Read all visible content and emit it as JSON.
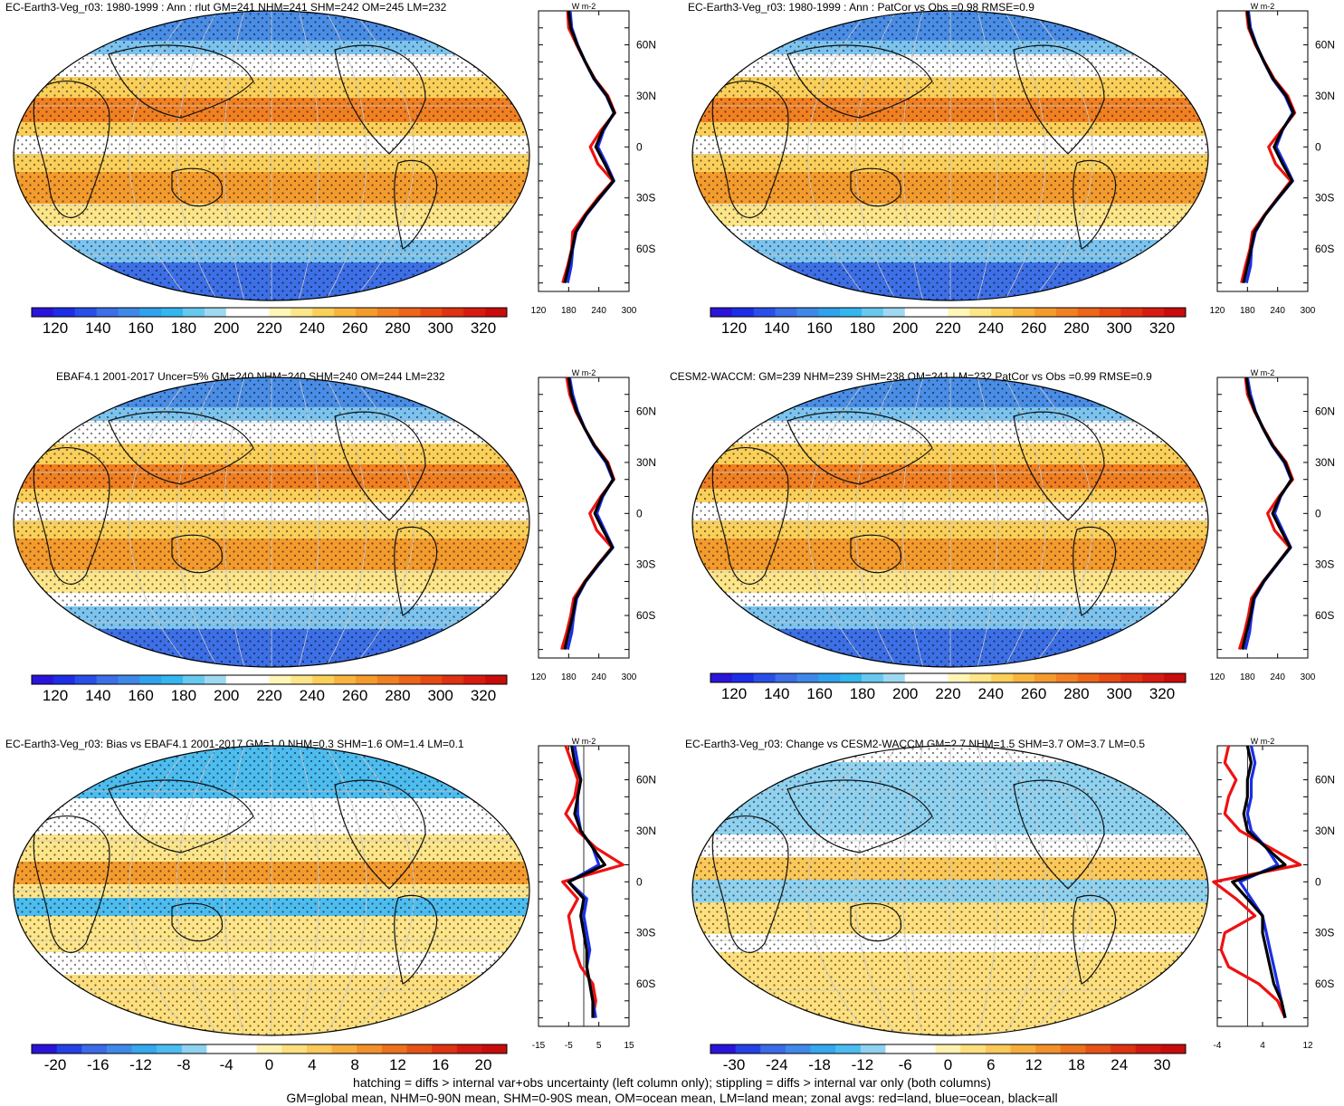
{
  "footer": {
    "line1": "hatching = diffs > internal var+obs uncertainty (left column only); stippling = diffs > internal var only (both columns)",
    "line2": "GM=global mean, NHM=0-90N mean, SHM=0-90S mean, OM=ocean mean, LM=land mean; zonal avgs: red=land, blue=ocean, black=all"
  },
  "colors": {
    "land": "#ee1111",
    "ocean": "#1a2ee6",
    "all": "#000000"
  },
  "chart_data": [
    {
      "type": "heatmap",
      "title": "EC-Earth3-Veg_r03: 1980-1999 : Ann : rlut GM=241 NHM=241 SHM=242 OM=245 LM=232",
      "colorbar": {
        "min": 110,
        "max": 330,
        "ticks": [
          "120",
          "140",
          "160",
          "180",
          "200",
          "220",
          "240",
          "260",
          "280",
          "300",
          "320"
        ]
      },
      "zonal": {
        "unit": "W m-2",
        "lat_ticks": [
          "60N",
          "30N",
          "0",
          "30S",
          "60S"
        ],
        "xticks": [
          "120",
          "180",
          "240",
          "300"
        ],
        "xlim": [
          120,
          300
        ],
        "lat": [
          80,
          70,
          60,
          50,
          40,
          30,
          20,
          10,
          0,
          -10,
          -20,
          -30,
          -40,
          -50,
          -60,
          -70,
          -80
        ],
        "land": [
          178,
          180,
          196,
          213,
          232,
          258,
          272,
          245,
          223,
          238,
          268,
          238,
          212,
          188,
          186,
          178,
          168
        ],
        "ocean": [
          183,
          186,
          198,
          213,
          230,
          255,
          270,
          250,
          238,
          255,
          270,
          242,
          215,
          195,
          188,
          185,
          178
        ],
        "all": [
          180,
          184,
          197,
          213,
          231,
          256,
          271,
          248,
          234,
          252,
          269,
          241,
          214,
          194,
          187,
          180,
          172
        ]
      }
    },
    {
      "type": "heatmap",
      "title": "EC-Earth3-Veg_r03: 1980-1999 : Ann : PatCor vs Obs =0.98 RMSE=0.9",
      "colorbar": {
        "min": 110,
        "max": 330,
        "ticks": [
          "120",
          "140",
          "160",
          "180",
          "200",
          "220",
          "240",
          "260",
          "280",
          "300",
          "320"
        ]
      },
      "zonal": {
        "unit": "W m-2",
        "lat_ticks": [
          "60N",
          "30N",
          "0",
          "30S",
          "60S"
        ],
        "xticks": [
          "120",
          "180",
          "240",
          "300"
        ],
        "xlim": [
          120,
          300
        ],
        "lat": [
          80,
          70,
          60,
          50,
          40,
          30,
          20,
          10,
          0,
          -10,
          -20,
          -30,
          -40,
          -50,
          -60,
          -70,
          -80
        ],
        "land": [
          178,
          182,
          196,
          214,
          233,
          260,
          274,
          248,
          222,
          236,
          266,
          240,
          214,
          190,
          185,
          176,
          168
        ],
        "ocean": [
          182,
          186,
          198,
          213,
          230,
          255,
          270,
          250,
          237,
          254,
          270,
          242,
          215,
          196,
          188,
          186,
          178
        ],
        "all": [
          180,
          184,
          197,
          213,
          231,
          257,
          272,
          249,
          233,
          250,
          269,
          241,
          215,
          194,
          187,
          180,
          172
        ]
      }
    },
    {
      "type": "heatmap",
      "title": "EBAF4.1 2001-2017 Uncer=5% GM=240 NHM=240 SHM=240 OM=244 LM=232",
      "colorbar": {
        "min": 110,
        "max": 330,
        "ticks": [
          "120",
          "140",
          "160",
          "180",
          "200",
          "220",
          "240",
          "260",
          "280",
          "300",
          "320"
        ]
      },
      "zonal": {
        "unit": "W m-2",
        "lat_ticks": [
          "60N",
          "30N",
          "0",
          "30S",
          "60S"
        ],
        "xticks": [
          "120",
          "180",
          "240",
          "300"
        ],
        "xlim": [
          120,
          300
        ],
        "lat": [
          80,
          70,
          60,
          50,
          40,
          30,
          20,
          10,
          0,
          -10,
          -20,
          -30,
          -40,
          -50,
          -60,
          -70,
          -80
        ],
        "land": [
          176,
          182,
          194,
          212,
          232,
          258,
          270,
          244,
          222,
          236,
          266,
          238,
          212,
          190,
          184,
          176,
          166
        ],
        "ocean": [
          182,
          188,
          198,
          212,
          230,
          254,
          268,
          248,
          236,
          252,
          268,
          240,
          214,
          196,
          190,
          186,
          178
        ],
        "all": [
          180,
          185,
          196,
          212,
          231,
          256,
          269,
          246,
          232,
          249,
          267,
          239,
          213,
          194,
          188,
          180,
          172
        ]
      }
    },
    {
      "type": "heatmap",
      "title": "CESM2-WACCM: GM=239 NHM=239 SHM=238 OM=241 LM=232 PatCor vs Obs =0.99 RMSE=0.9",
      "colorbar": {
        "min": 110,
        "max": 330,
        "ticks": [
          "120",
          "140",
          "160",
          "180",
          "200",
          "220",
          "240",
          "260",
          "280",
          "300",
          "320"
        ]
      },
      "zonal": {
        "unit": "W m-2",
        "lat_ticks": [
          "60N",
          "30N",
          "0",
          "30S",
          "60S"
        ],
        "xticks": [
          "120",
          "180",
          "240",
          "300"
        ],
        "xlim": [
          120,
          300
        ],
        "lat": [
          80,
          70,
          60,
          50,
          40,
          30,
          20,
          10,
          0,
          -10,
          -20,
          -30,
          -40,
          -50,
          -60,
          -70,
          -80
        ],
        "land": [
          176,
          180,
          194,
          212,
          231,
          257,
          270,
          243,
          220,
          234,
          264,
          238,
          211,
          188,
          182,
          174,
          164
        ],
        "ocean": [
          180,
          186,
          196,
          211,
          229,
          253,
          267,
          246,
          234,
          250,
          266,
          239,
          213,
          194,
          188,
          184,
          176
        ],
        "all": [
          178,
          183,
          195,
          211,
          230,
          255,
          268,
          245,
          230,
          247,
          265,
          238,
          212,
          192,
          186,
          178,
          170
        ]
      }
    },
    {
      "type": "heatmap",
      "title": "EC-Earth3-Veg_r03: Bias vs EBAF4.1 2001-2017 GM=1.0 NHM=0.3 SHM=1.6 OM=1.4 LM=0.1",
      "colorbar": {
        "min": -22,
        "max": 22,
        "ticks": [
          "-20",
          "-16",
          "-12",
          "-8",
          "-4",
          "0",
          "4",
          "8",
          "12",
          "16",
          "20"
        ]
      },
      "zonal": {
        "unit": "W m-2",
        "lat_ticks": [
          "60N",
          "30N",
          "0",
          "30S",
          "60S"
        ],
        "xticks": [
          "-15",
          "-5",
          "5",
          "15"
        ],
        "xlim": [
          -15,
          15
        ],
        "lat": [
          80,
          70,
          60,
          50,
          40,
          30,
          20,
          10,
          0,
          -10,
          -20,
          -30,
          -40,
          -50,
          -60,
          -70,
          -80
        ],
        "land": [
          -6,
          -4,
          -2,
          -3,
          -6,
          -2,
          4,
          13,
          -7,
          -2,
          -5,
          -4,
          -3,
          -1,
          3,
          4,
          3
        ],
        "ocean": [
          -3,
          -2,
          -1,
          -2,
          -2,
          -1,
          3,
          5,
          -5,
          1,
          0,
          1,
          2,
          1,
          2,
          3,
          4
        ],
        "all": [
          -4,
          -3,
          -1,
          -2,
          -3,
          -1,
          3,
          7,
          -5,
          0,
          -1,
          0,
          1,
          1,
          2,
          3,
          3
        ]
      }
    },
    {
      "type": "heatmap",
      "title": "EC-Earth3-Veg_r03: Change vs CESM2-WACCM GM=2.7 NHM=1.5 SHM=3.7 OM=3.7 LM=0.5",
      "colorbar": {
        "min": -33,
        "max": 33,
        "ticks": [
          "-30",
          "-24",
          "-18",
          "-12",
          "-6",
          "0",
          "6",
          "12",
          "18",
          "24",
          "30"
        ]
      },
      "zonal": {
        "unit": "W m-2",
        "lat_ticks": [
          "60N",
          "30N",
          "0",
          "30S",
          "60S"
        ],
        "xticks": [
          "-4",
          "4",
          "12"
        ],
        "xlim": [
          -8,
          16
        ],
        "lat": [
          80,
          70,
          60,
          50,
          40,
          30,
          20,
          10,
          0,
          -10,
          -20,
          -30,
          -40,
          -50,
          -60,
          -70,
          -80
        ],
        "land": [
          -5,
          -6,
          -3,
          -5,
          -6,
          -2,
          6,
          14,
          -9,
          -3,
          2,
          -6,
          -7,
          -5,
          3,
          8,
          10
        ],
        "ocean": [
          1,
          2,
          1,
          1,
          0,
          1,
          5,
          8,
          -2,
          1,
          4,
          5,
          6,
          7,
          8,
          9,
          10
        ],
        "all": [
          0,
          1,
          0,
          0,
          -1,
          0,
          5,
          10,
          -4,
          0,
          4,
          4,
          5,
          6,
          7,
          9,
          10
        ]
      }
    }
  ]
}
